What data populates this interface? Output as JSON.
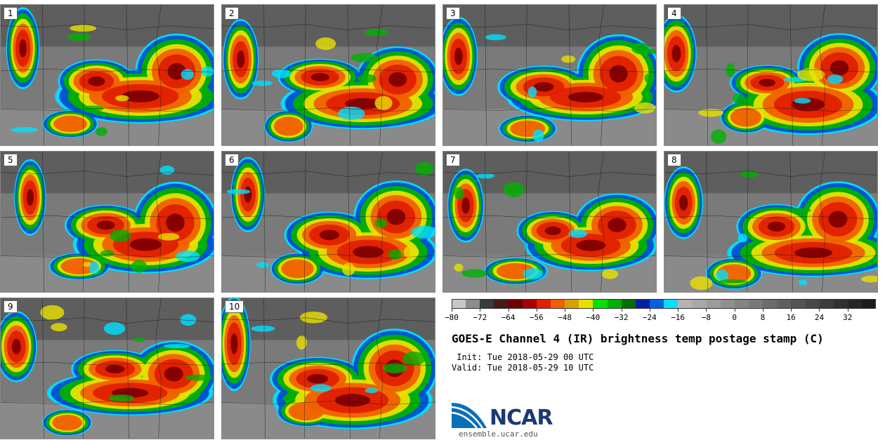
{
  "stamps": [
    {
      "label": "1"
    },
    {
      "label": "2"
    },
    {
      "label": "3"
    },
    {
      "label": "4"
    },
    {
      "label": "5"
    },
    {
      "label": "6"
    },
    {
      "label": "7"
    },
    {
      "label": "8"
    },
    {
      "label": "9"
    },
    {
      "label": "10"
    }
  ],
  "colorbar": {
    "colors": [
      "#c8c8c8",
      "#8c8c8c",
      "#3a3a3a",
      "#4a1a1a",
      "#6e0000",
      "#a80000",
      "#e02000",
      "#f06000",
      "#d8a000",
      "#e8e000",
      "#00e000",
      "#00b000",
      "#006e00",
      "#0020a0",
      "#0060e0",
      "#00e0ff",
      "#b4b4b4",
      "#a8a8a8",
      "#9c9c9c",
      "#909090",
      "#848484",
      "#787878",
      "#6c6c6c",
      "#606060",
      "#545454",
      "#484848",
      "#3c3c3c",
      "#303030",
      "#262626",
      "#1c1c1c"
    ],
    "tick_labels": [
      "−80",
      "−72",
      "−64",
      "−56",
      "−48",
      "−40",
      "−32",
      "−24",
      "−16",
      "−8",
      "0",
      "8",
      "16",
      "24",
      "32"
    ]
  },
  "title": "GOES-E Channel 4 (IR) brightness temp postage stamp (C)",
  "init_text": " Init: Tue 2018-05-29 00 UTC",
  "valid_text": "Valid: Tue 2018-05-29 10 UTC",
  "logo_text": "NCAR",
  "site_text": "ensemble.ucar.edu"
}
